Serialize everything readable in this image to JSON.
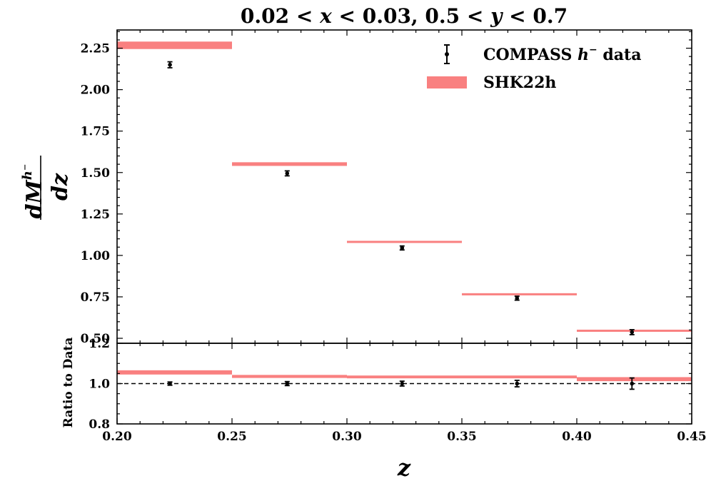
{
  "chart_data": {
    "type": "step+errorbar",
    "title_parts": [
      "0.02 < ",
      "x",
      " < 0.03, 0.5 < ",
      "y",
      " < 0.7"
    ],
    "main_panel": {
      "ylabel_numerator": "dM",
      "ylabel_superscript": "h⁻",
      "ylabel_denominator": "dz",
      "ylim": [
        0.47,
        2.36
      ],
      "yticks": [
        0.5,
        0.75,
        1.0,
        1.25,
        1.5,
        1.75,
        2.0,
        2.25
      ],
      "ytick_labels": [
        "0.50",
        "0.75",
        "1.00",
        "1.25",
        "1.50",
        "1.75",
        "2.00",
        "2.25"
      ],
      "data": {
        "name": "COMPASS h⁻ data",
        "x": [
          0.223,
          0.274,
          0.324,
          0.374,
          0.424
        ],
        "y": [
          2.15,
          1.495,
          1.045,
          0.742,
          0.537
        ],
        "yerr": [
          0.018,
          0.015,
          0.012,
          0.012,
          0.015
        ]
      },
      "model": {
        "name": "SHK22h",
        "bins": [
          [
            0.2,
            0.25
          ],
          [
            0.25,
            0.3
          ],
          [
            0.3,
            0.35
          ],
          [
            0.35,
            0.4
          ],
          [
            0.4,
            0.45
          ]
        ],
        "lower": [
          2.245,
          1.54,
          1.077,
          0.762,
          0.543
        ],
        "upper": [
          2.29,
          1.562,
          1.088,
          0.772,
          0.552
        ]
      }
    },
    "ratio_panel": {
      "ylabel": "Ratio to Data",
      "ylim": [
        0.8,
        1.2
      ],
      "yticks": [
        0.8,
        1.0,
        1.2
      ],
      "ytick_labels": [
        "0.8",
        "1.0",
        "1.2"
      ],
      "reference_line": 1.0,
      "data": {
        "x": [
          0.223,
          0.274,
          0.324,
          0.374,
          0.424
        ],
        "y": [
          1.0,
          1.0,
          1.0,
          1.0,
          1.0
        ],
        "yerr": [
          0.008,
          0.01,
          0.012,
          0.016,
          0.028
        ]
      },
      "model": {
        "bins": [
          [
            0.2,
            0.25
          ],
          [
            0.25,
            0.3
          ],
          [
            0.3,
            0.35
          ],
          [
            0.35,
            0.4
          ],
          [
            0.4,
            0.45
          ]
        ],
        "lower": [
          1.045,
          1.028,
          1.026,
          1.026,
          1.012
        ],
        "upper": [
          1.066,
          1.043,
          1.04,
          1.04,
          1.032
        ]
      }
    },
    "xlabel": "z",
    "xlim": [
      0.2,
      0.45
    ],
    "xticks": [
      0.2,
      0.25,
      0.3,
      0.35,
      0.4,
      0.45
    ],
    "xtick_labels": [
      "0.20",
      "0.25",
      "0.30",
      "0.35",
      "0.40",
      "0.45"
    ],
    "legend": {
      "position": "top-right",
      "entries": [
        {
          "label_prefix": "COMPASS ",
          "label_math": "h",
          "label_sup": "−",
          "label_suffix": " data",
          "marker": "errorbar"
        },
        {
          "label_prefix": "SHK22h",
          "label_math": "",
          "label_sup": "",
          "label_suffix": "",
          "marker": "band"
        }
      ]
    },
    "colors": {
      "model": "#f98080",
      "data": "#000000",
      "axes": "#000000"
    }
  }
}
